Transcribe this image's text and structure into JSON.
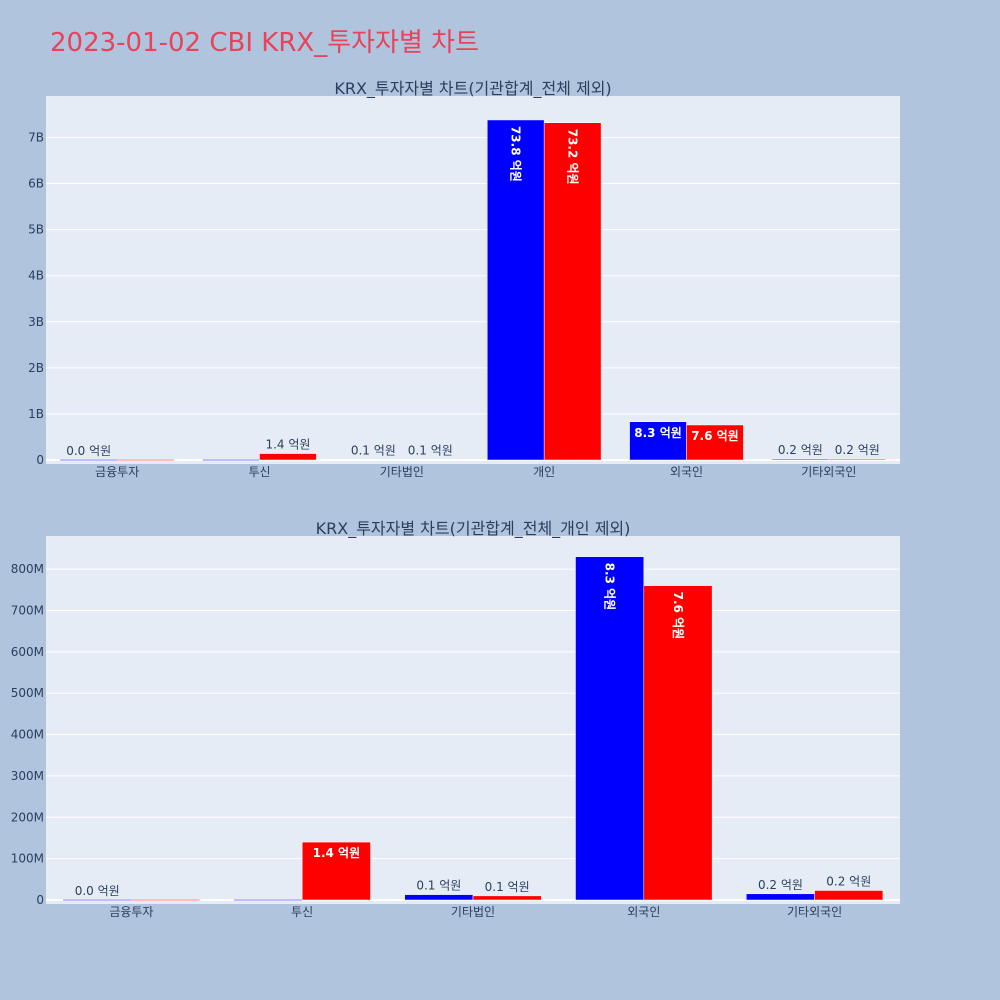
{
  "page_title": "2023-01-02 CBI KRX_투자자별 차트",
  "colors": {
    "buy": "#0000ff",
    "sell": "#ff0000",
    "title": "#e8435a",
    "plot_bg": "#e5ecf6",
    "paper_bg": "#b0c4de",
    "grid": "#ffffff"
  },
  "chart_data": [
    {
      "type": "bar",
      "title": "KRX_투자자별 차트(기관합계_전체 제외)",
      "categories": [
        "금융투자",
        "투신",
        "기타법인",
        "개인",
        "외국인",
        "기타외국인"
      ],
      "series": [
        {
          "values": [
            0,
            0,
            10000000,
            7380000000,
            830000000,
            20000000
          ],
          "labels": [
            "0.0 억원",
            "",
            "0.1 억원",
            "73.8 억원",
            "8.3 억원",
            "0.2 억원"
          ]
        },
        {
          "values": [
            0,
            140000000,
            10000000,
            7320000000,
            760000000,
            20000000
          ],
          "labels": [
            "",
            "1.4 억원",
            "0.1 억원",
            "73.2 억원",
            "7.6 억원",
            "0.2 억원"
          ]
        }
      ],
      "ylim": [
        0,
        7900000000
      ],
      "yticks": [
        0,
        1000000000,
        2000000000,
        3000000000,
        4000000000,
        5000000000,
        6000000000,
        7000000000
      ],
      "ytick_labels": [
        "0",
        "1B",
        "2B",
        "3B",
        "4B",
        "5B",
        "6B",
        "7B"
      ],
      "grid": true,
      "xlabel": "",
      "ylabel": ""
    },
    {
      "type": "bar",
      "title": "KRX_투자자별 차트(기관합계_전체_개인 제외)",
      "categories": [
        "금융투자",
        "투신",
        "기타법인",
        "외국인",
        "기타외국인"
      ],
      "series": [
        {
          "values": [
            0,
            0,
            13000000,
            830000000,
            15000000
          ],
          "labels": [
            "0.0 억원",
            "",
            "0.1 억원",
            "8.3 억원",
            "0.2 억원"
          ]
        },
        {
          "values": [
            0,
            140000000,
            10000000,
            760000000,
            23000000
          ],
          "labels": [
            "",
            "1.4 억원",
            "0.1 억원",
            "7.6 억원",
            "0.2 억원"
          ]
        }
      ],
      "ylim": [
        0,
        880000000
      ],
      "yticks": [
        0,
        100000000,
        200000000,
        300000000,
        400000000,
        500000000,
        600000000,
        700000000,
        800000000
      ],
      "ytick_labels": [
        "0",
        "100M",
        "200M",
        "300M",
        "400M",
        "500M",
        "600M",
        "700M",
        "800M"
      ],
      "grid": true,
      "xlabel": "",
      "ylabel": ""
    }
  ]
}
